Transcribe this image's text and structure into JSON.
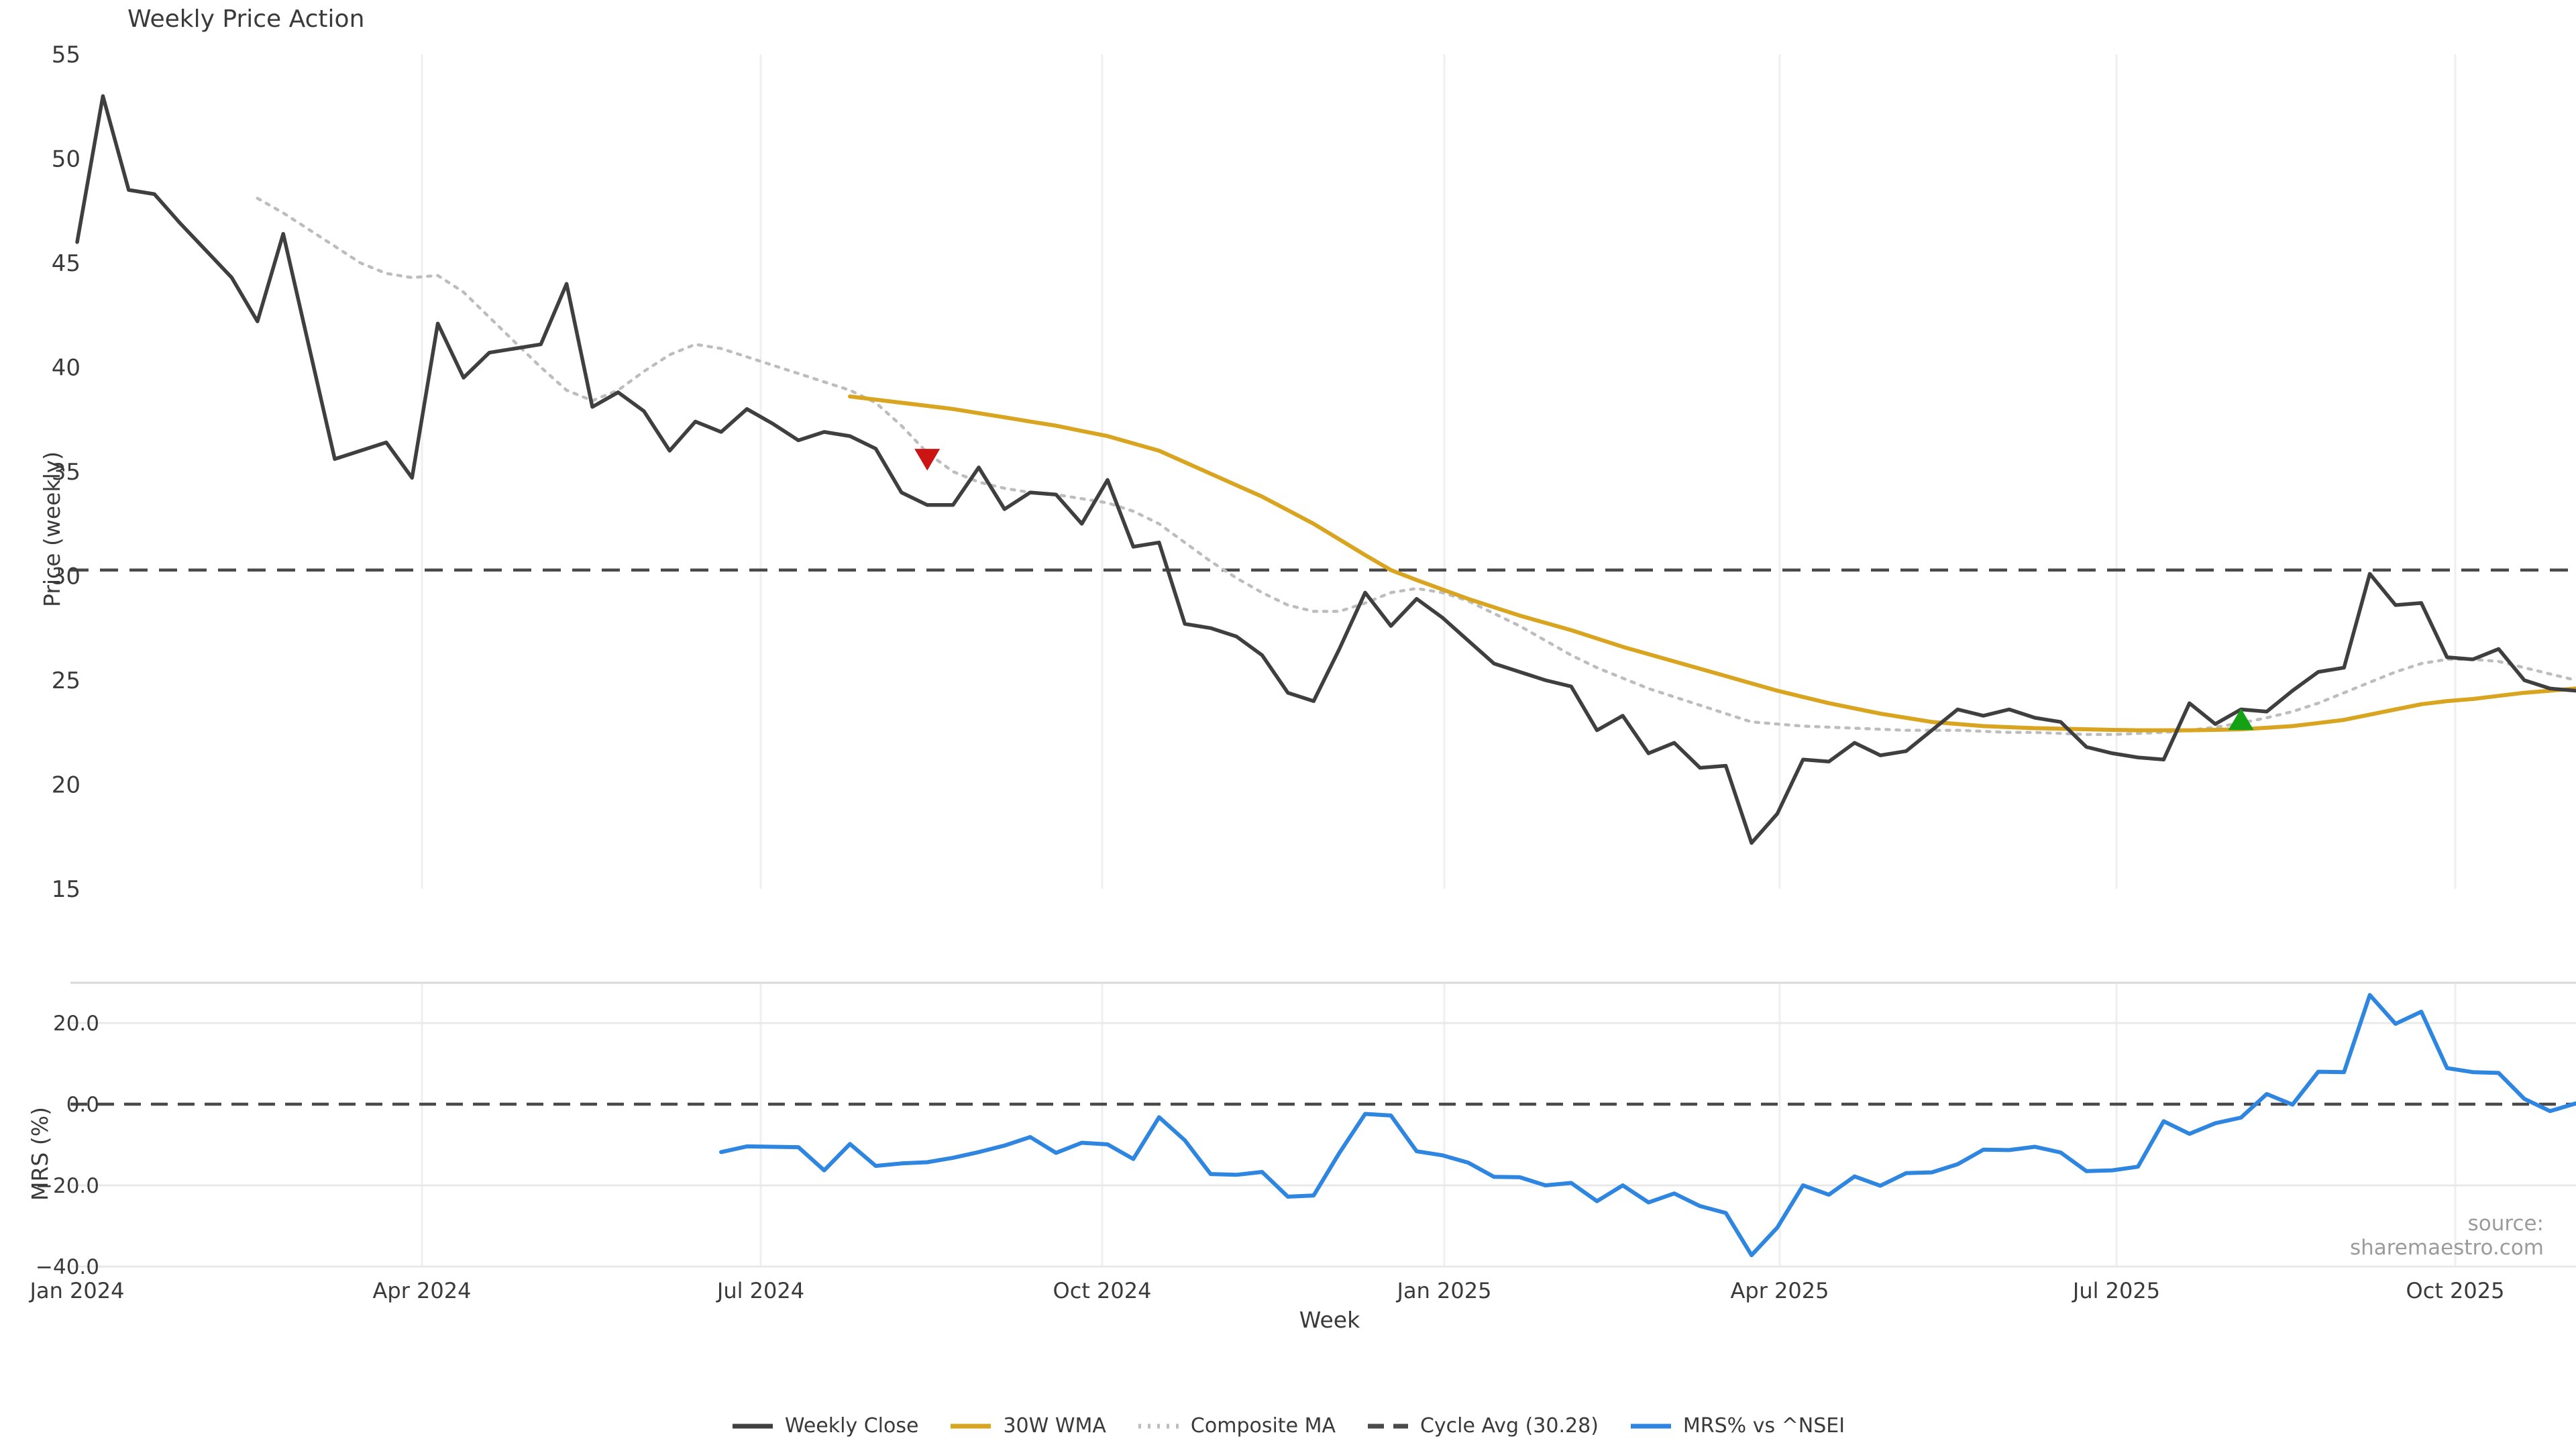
{
  "title": "Weekly Price Action",
  "xlabel": "Week",
  "source": "source: sharemaestro.com",
  "xticks": [
    "Jan 2024",
    "Apr 2024",
    "Jul 2024",
    "Oct 2024",
    "Jan 2025",
    "Apr 2025",
    "Jul 2025",
    "Oct 2025"
  ],
  "price_panel": {
    "ylabel": "Price (weekly)",
    "yticks": [
      "55",
      "50",
      "45",
      "40",
      "35",
      "30",
      "25",
      "20",
      "15"
    ],
    "cycle_avg_value": 30.28
  },
  "mrs_panel": {
    "ylabel": "MRS (%)",
    "yticks": [
      "20.0",
      "0.0",
      "−20.0",
      "−40.0"
    ],
    "zero_line_value": 0
  },
  "legend": [
    {
      "label": "Weekly Close",
      "style": "solid",
      "color": "#3f3f3f"
    },
    {
      "label": "30W WMA",
      "style": "solid",
      "color": "#d9a520"
    },
    {
      "label": "Composite MA",
      "style": "dotted",
      "color": "#bdbdbd"
    },
    {
      "label": "Cycle Avg (30.28)",
      "style": "dashed",
      "color": "#4a4a4a"
    },
    {
      "label": "MRS% vs ^NSEI",
      "style": "solid",
      "color": "#2e86e0"
    }
  ],
  "colors": {
    "weekly_close": "#3f3f3f",
    "wma": "#d9a520",
    "composite": "#bdbdbd",
    "cycle_avg": "#4a4a4a",
    "mrs": "#2e86e0",
    "sell_marker": "#cc1414",
    "buy_marker": "#15a115",
    "gridline": "#efefef",
    "panel_gridline": "#e9e9e9",
    "tick_text": "#3a3a3a",
    "source_text": "#9b9b9b"
  },
  "chart_data": [
    {
      "name": "Weekly Close",
      "type": "line",
      "panel": "price",
      "start_week": 0,
      "ylabel": "Price (weekly)",
      "ylim": [
        15,
        55
      ],
      "values": [
        46.0,
        53.0,
        48.5,
        48.3,
        46.9,
        45.6,
        44.3,
        42.2,
        46.4,
        41.0,
        35.6,
        36.0,
        36.4,
        34.7,
        42.1,
        39.5,
        40.7,
        40.9,
        41.1,
        44.0,
        38.1,
        38.8,
        37.9,
        36.0,
        37.4,
        36.9,
        38.0,
        37.3,
        36.5,
        36.9,
        36.7,
        36.1,
        34.0,
        33.4,
        33.4,
        35.2,
        33.2,
        34.0,
        33.9,
        32.5,
        34.6,
        31.4,
        31.6,
        27.7,
        27.5,
        27.1,
        26.2,
        24.4,
        24.0,
        26.5,
        29.2,
        27.6,
        28.9,
        28.0,
        26.9,
        25.8,
        25.4,
        25.0,
        24.7,
        22.6,
        23.3,
        21.5,
        22.0,
        20.8,
        20.9,
        17.2,
        18.6,
        21.2,
        21.1,
        22.0,
        21.4,
        21.6,
        22.6,
        23.6,
        23.3,
        23.6,
        23.2,
        23.0,
        21.8,
        21.5,
        21.3,
        21.2,
        23.9,
        22.9,
        23.6,
        23.5,
        24.5,
        25.4,
        25.6,
        30.1,
        28.6,
        28.7,
        26.1,
        26.0,
        26.5,
        25.0,
        24.6,
        24.5
      ]
    },
    {
      "name": "30W WMA",
      "type": "line",
      "panel": "price",
      "start_week": 30,
      "values": [
        38.6,
        38.45,
        38.3,
        38.15,
        38.0,
        37.8,
        37.6,
        37.4,
        37.2,
        36.95,
        36.7,
        36.35,
        36.0,
        35.45,
        34.9,
        34.35,
        33.8,
        33.15,
        32.5,
        31.75,
        31.0,
        30.28,
        29.8,
        29.35,
        28.9,
        28.5,
        28.1,
        27.75,
        27.4,
        27.0,
        26.6,
        26.25,
        25.9,
        25.55,
        25.2,
        24.85,
        24.5,
        24.2,
        23.9,
        23.65,
        23.4,
        23.2,
        23.0,
        22.9,
        22.8,
        22.75,
        22.7,
        22.68,
        22.65,
        22.62,
        22.6,
        22.6,
        22.6,
        22.62,
        22.65,
        22.72,
        22.8,
        22.95,
        23.1,
        23.35,
        23.6,
        23.85,
        24.0,
        24.1,
        24.25,
        24.4,
        24.5,
        24.6
      ]
    },
    {
      "name": "Composite MA",
      "type": "line",
      "panel": "price",
      "start_week": 7,
      "values": [
        48.1,
        47.4,
        46.6,
        45.8,
        45.0,
        44.5,
        44.3,
        44.4,
        43.6,
        42.4,
        41.2,
        40.0,
        38.9,
        38.4,
        38.9,
        39.8,
        40.6,
        41.1,
        40.9,
        40.5,
        40.1,
        39.7,
        39.3,
        38.9,
        38.3,
        37.2,
        35.9,
        35.0,
        34.5,
        34.2,
        34.0,
        33.9,
        33.7,
        33.5,
        33.1,
        32.5,
        31.6,
        30.7,
        29.9,
        29.2,
        28.6,
        28.3,
        28.3,
        28.7,
        29.2,
        29.4,
        29.2,
        28.8,
        28.2,
        27.6,
        26.9,
        26.2,
        25.6,
        25.1,
        24.6,
        24.2,
        23.8,
        23.4,
        23.0,
        22.9,
        22.8,
        22.75,
        22.7,
        22.65,
        22.6,
        22.6,
        22.6,
        22.55,
        22.5,
        22.5,
        22.45,
        22.4,
        22.4,
        22.45,
        22.5,
        22.6,
        22.75,
        22.95,
        23.2,
        23.5,
        23.9,
        24.4,
        24.9,
        25.4,
        25.8,
        26.0,
        26.0,
        25.9,
        25.6,
        25.3,
        25.0
      ]
    },
    {
      "name": "Cycle Avg (30.28)",
      "type": "hline",
      "panel": "price",
      "value": 30.28
    },
    {
      "name": "MRS% vs ^NSEI",
      "type": "line",
      "panel": "mrs",
      "start_week": 25,
      "ylabel": "MRS (%)",
      "ylim": [
        -40,
        25
      ],
      "values": [
        -11.8,
        -10.4,
        -10.5,
        -10.6,
        -16.3,
        -9.8,
        -15.2,
        -14.6,
        -14.3,
        -13.2,
        -11.8,
        -10.2,
        -8.1,
        -12.0,
        -9.5,
        -9.9,
        -13.5,
        -3.2,
        -8.9,
        -17.2,
        -17.4,
        -16.7,
        -22.8,
        -22.5,
        -12.0,
        -2.4,
        -2.8,
        -11.6,
        -12.6,
        -14.4,
        -17.9,
        -18.0,
        -20.0,
        -19.4,
        -23.9,
        -20.0,
        -24.2,
        -22.0,
        -25.1,
        -26.8,
        -37.2,
        -30.4,
        -20.0,
        -22.3,
        -17.8,
        -20.1,
        -17.0,
        -16.8,
        -14.8,
        -11.2,
        -11.3,
        -10.5,
        -11.9,
        -16.5,
        -16.3,
        -15.4,
        -4.2,
        -7.3,
        -4.7,
        -3.3,
        2.5,
        -0.1,
        8.0,
        7.9,
        26.9,
        19.8,
        22.8,
        8.9,
        7.9,
        7.7,
        1.3,
        -1.7,
        0.2
      ]
    },
    {
      "name": "Zero line",
      "type": "hline",
      "panel": "mrs",
      "value": 0
    },
    {
      "name": "markers",
      "type": "scatter",
      "panel": "price",
      "points": [
        {
          "week": 33,
          "value": 35.6,
          "shape": "triangle-down",
          "color": "#cc1414",
          "meaning": "sell-signal"
        },
        {
          "week": 84,
          "value": 23.1,
          "shape": "triangle-up",
          "color": "#15a115",
          "meaning": "buy-signal"
        }
      ]
    }
  ]
}
